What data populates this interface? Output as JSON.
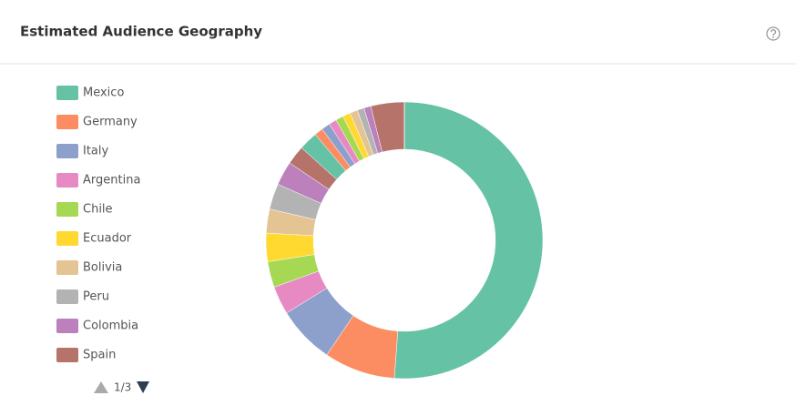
{
  "chart_data": {
    "type": "pie",
    "title": "Estimated Audience Geography",
    "categories": [
      "Mexico",
      "Germany",
      "Italy",
      "Argentina",
      "Chile",
      "Ecuador",
      "Bolivia",
      "Peru",
      "Colombia",
      "Spain",
      null,
      null,
      null,
      null,
      null,
      null,
      null,
      null,
      null,
      null,
      null
    ],
    "values": [
      51,
      8.3,
      6.7,
      3.3,
      3,
      3.3,
      2.8,
      3,
      2.8,
      2.2,
      2.2,
      1.0,
      1.0,
      0.9,
      0.9,
      0.9,
      0.9,
      0.8,
      0.8,
      3.9,
      0
    ],
    "colors": [
      "#66c2a5",
      "#fc8d62",
      "#8da0cb",
      "#e78ac3",
      "#a6d854",
      "#ffd92f",
      "#e5c494",
      "#b3b3b3",
      "#bc80bd",
      "#b5736a",
      "#66c2a5",
      "#fc8d62",
      "#8da0cb",
      "#e78ac3",
      "#a6d854",
      "#ffd92f",
      "#e5c494",
      "#b3b3b3",
      "#bc80bd",
      "#b5736a",
      "#66c2a5"
    ],
    "legend_page": "1/3"
  }
}
